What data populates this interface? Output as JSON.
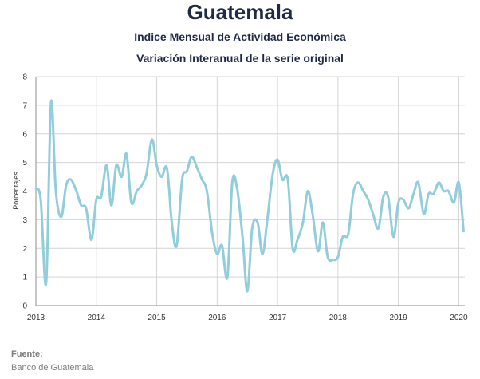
{
  "header": {
    "title": "Guatemala",
    "subtitle_1": "Indice Mensual de  Actividad Económica",
    "subtitle_2": "Variación Interanual de la serie original"
  },
  "source": {
    "label": "Fuente:",
    "value": "Banco de Guatemala"
  },
  "colors": {
    "line": "#92cddc",
    "grid": "#d4d4d4",
    "axis": "#8c8c8c"
  },
  "chart_data": {
    "type": "line",
    "title": "Guatemala",
    "subtitle": "Indice Mensual de  Actividad Económica — Variación Interanual de la serie original",
    "xlabel": "",
    "ylabel": "Porcentajes",
    "ylim": [
      0,
      8
    ],
    "yticks": [
      "0",
      "1",
      "2",
      "3",
      "4",
      "5",
      "6",
      "7",
      "8"
    ],
    "xlim": [
      2013,
      2020.1
    ],
    "xticks": [
      "2013",
      "2014",
      "2015",
      "2016",
      "2017",
      "2018",
      "2019",
      "2020"
    ],
    "grid": true,
    "legend": "none",
    "series": [
      {
        "values": [
          [
            2013.0,
            4.1
          ],
          [
            2013.08,
            3.7
          ],
          [
            2013.17,
            0.8
          ],
          [
            2013.25,
            7.1
          ],
          [
            2013.33,
            4.0
          ],
          [
            2013.42,
            3.1
          ],
          [
            2013.5,
            4.2
          ],
          [
            2013.58,
            4.4
          ],
          [
            2013.67,
            4.0
          ],
          [
            2013.75,
            3.5
          ],
          [
            2013.83,
            3.4
          ],
          [
            2013.92,
            2.3
          ],
          [
            2014.0,
            3.7
          ],
          [
            2014.08,
            3.8
          ],
          [
            2014.17,
            4.9
          ],
          [
            2014.25,
            3.5
          ],
          [
            2014.33,
            4.9
          ],
          [
            2014.42,
            4.5
          ],
          [
            2014.5,
            5.3
          ],
          [
            2014.58,
            3.6
          ],
          [
            2014.67,
            4.0
          ],
          [
            2014.75,
            4.2
          ],
          [
            2014.83,
            4.6
          ],
          [
            2014.92,
            5.8
          ],
          [
            2015.0,
            4.9
          ],
          [
            2015.08,
            4.5
          ],
          [
            2015.17,
            4.8
          ],
          [
            2015.25,
            2.9
          ],
          [
            2015.33,
            2.1
          ],
          [
            2015.42,
            4.4
          ],
          [
            2015.5,
            4.7
          ],
          [
            2015.58,
            5.2
          ],
          [
            2015.67,
            4.8
          ],
          [
            2015.75,
            4.4
          ],
          [
            2015.83,
            4.0
          ],
          [
            2015.92,
            2.5
          ],
          [
            2016.0,
            1.8
          ],
          [
            2016.08,
            2.1
          ],
          [
            2016.17,
            1.0
          ],
          [
            2016.25,
            4.3
          ],
          [
            2016.33,
            4.1
          ],
          [
            2016.42,
            2.4
          ],
          [
            2016.5,
            0.5
          ],
          [
            2016.58,
            2.7
          ],
          [
            2016.67,
            2.9
          ],
          [
            2016.75,
            1.8
          ],
          [
            2016.83,
            3.0
          ],
          [
            2016.92,
            4.6
          ],
          [
            2017.0,
            5.1
          ],
          [
            2017.08,
            4.4
          ],
          [
            2017.17,
            4.4
          ],
          [
            2017.25,
            2.0
          ],
          [
            2017.33,
            2.3
          ],
          [
            2017.42,
            2.9
          ],
          [
            2017.5,
            4.0
          ],
          [
            2017.58,
            3.2
          ],
          [
            2017.67,
            1.9
          ],
          [
            2017.75,
            2.9
          ],
          [
            2017.83,
            1.7
          ],
          [
            2017.92,
            1.6
          ],
          [
            2018.0,
            1.7
          ],
          [
            2018.08,
            2.4
          ],
          [
            2018.17,
            2.5
          ],
          [
            2018.25,
            3.9
          ],
          [
            2018.33,
            4.3
          ],
          [
            2018.42,
            4.0
          ],
          [
            2018.5,
            3.7
          ],
          [
            2018.58,
            3.2
          ],
          [
            2018.67,
            2.7
          ],
          [
            2018.75,
            3.8
          ],
          [
            2018.83,
            3.8
          ],
          [
            2018.92,
            2.4
          ],
          [
            2019.0,
            3.6
          ],
          [
            2019.08,
            3.7
          ],
          [
            2019.17,
            3.4
          ],
          [
            2019.25,
            3.9
          ],
          [
            2019.33,
            4.3
          ],
          [
            2019.42,
            3.2
          ],
          [
            2019.5,
            3.9
          ],
          [
            2019.58,
            3.9
          ],
          [
            2019.67,
            4.3
          ],
          [
            2019.75,
            4.0
          ],
          [
            2019.83,
            4.0
          ],
          [
            2019.92,
            3.6
          ],
          [
            2020.0,
            4.3
          ],
          [
            2020.08,
            2.6
          ]
        ]
      }
    ]
  }
}
